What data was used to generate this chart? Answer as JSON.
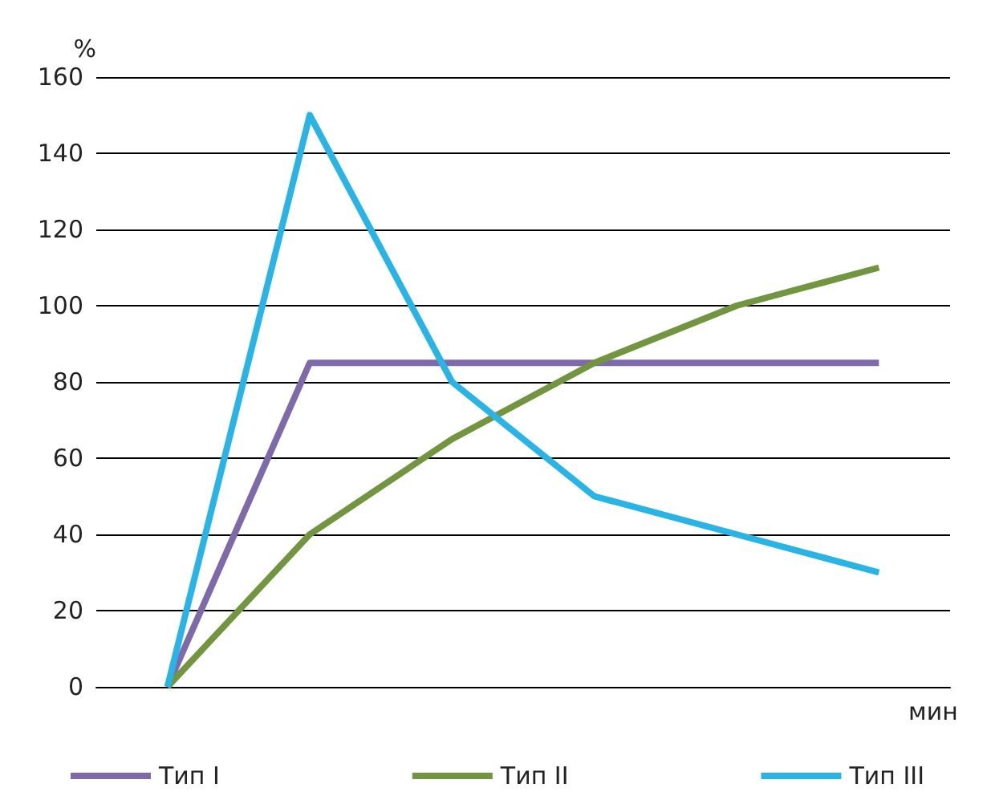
{
  "chart_data": {
    "type": "line",
    "ylabel": "%",
    "xlabel": "мин",
    "categories": [
      null,
      null,
      null,
      null,
      null,
      null
    ],
    "series": [
      {
        "name": "Тип I",
        "color": "#7e6aa8",
        "values": [
          0,
          85,
          85,
          85,
          85,
          85
        ]
      },
      {
        "name": "Тип II",
        "color": "#72963f",
        "values": [
          0,
          40,
          65,
          85,
          100,
          110
        ]
      },
      {
        "name": "Тип III",
        "color": "#2ab4e6",
        "values": [
          0,
          150,
          80,
          50,
          40,
          30
        ]
      }
    ],
    "ylim": [
      0,
      160
    ],
    "yticks": [
      0,
      20,
      40,
      60,
      80,
      100,
      120,
      140,
      160
    ],
    "grid": "y",
    "legend": "bottom",
    "marker": "none",
    "line_style": "solid"
  }
}
